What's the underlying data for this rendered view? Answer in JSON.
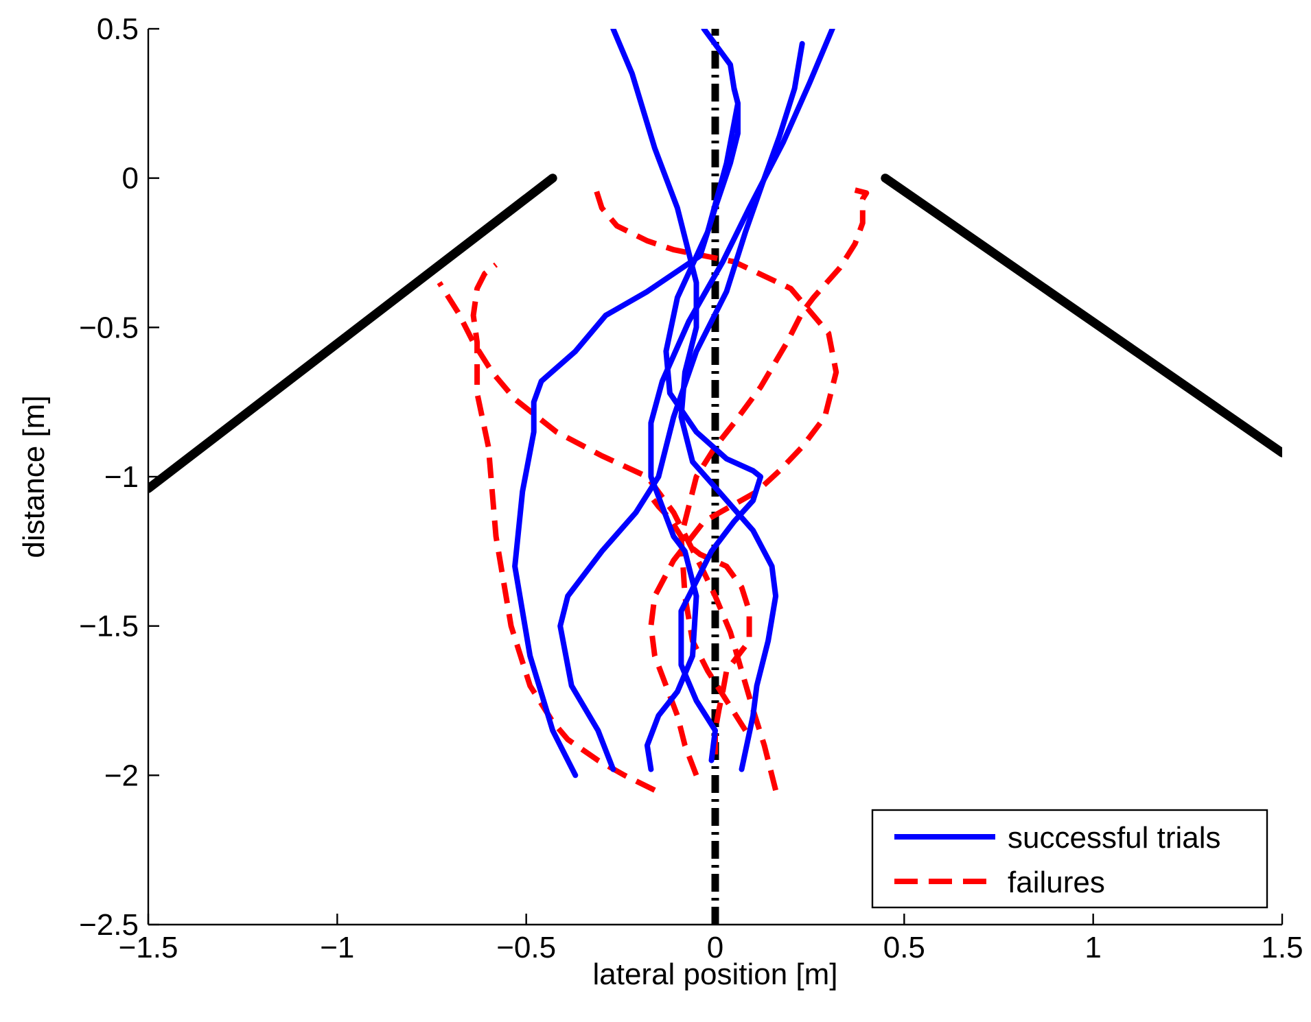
{
  "chart_data": {
    "type": "line",
    "title": "",
    "xlabel": "lateral position [m]",
    "ylabel": "distance [m]",
    "xlim": [
      -1.5,
      1.5
    ],
    "ylim": [
      -2.5,
      0.5
    ],
    "xticks": [
      -1.5,
      -1,
      -0.5,
      0,
      0.5,
      1,
      1.5
    ],
    "xtick_labels": [
      "−1.5",
      "−1",
      "−0.5",
      "0",
      "0.5",
      "1",
      "1.5"
    ],
    "yticks": [
      0.5,
      0,
      -0.5,
      -1,
      -1.5,
      -2,
      -2.5
    ],
    "ytick_labels": [
      "0.5",
      "0",
      "−0.5",
      "−1",
      "−1.5",
      "−2",
      "−2.5"
    ],
    "grid": false,
    "legend": {
      "position": "bottom-right",
      "entries": [
        "successful trials",
        "failures"
      ]
    },
    "colors": {
      "success": "#0000ff",
      "failure": "#ff0000",
      "walls": "#000000",
      "centerline": "#000000"
    },
    "walls": [
      {
        "name": "left-wall",
        "x": [
          -1.5,
          -0.43
        ],
        "y": [
          -1.04,
          0.0
        ]
      },
      {
        "name": "right-wall",
        "x": [
          0.45,
          1.5
        ],
        "y": [
          0.0,
          -0.92
        ]
      }
    ],
    "centerline": {
      "x": [
        0.0,
        0.0
      ],
      "y": [
        -2.5,
        0.5
      ]
    },
    "series": [
      {
        "name": "successful trials",
        "style": "solid",
        "color": "#0000ff",
        "trials": [
          {
            "x": [
              -0.37,
              -0.43,
              -0.49,
              -0.53,
              -0.51,
              -0.48,
              -0.48,
              -0.46,
              -0.37,
              -0.29,
              -0.18,
              -0.04,
              0.0,
              0.04,
              0.06,
              0.06,
              0.05
            ],
            "y": [
              -2.0,
              -1.85,
              -1.6,
              -1.3,
              -1.05,
              -0.85,
              -0.75,
              -0.68,
              -0.58,
              -0.46,
              -0.38,
              -0.26,
              -0.1,
              0.05,
              0.15,
              0.25,
              0.3
            ]
          },
          {
            "x": [
              -0.27,
              -0.31,
              -0.38,
              -0.41,
              -0.39,
              -0.3,
              -0.21,
              -0.15,
              -0.11,
              -0.05,
              0.03,
              0.08,
              0.13,
              0.17,
              0.21,
              0.23
            ],
            "y": [
              -1.98,
              -1.85,
              -1.7,
              -1.5,
              -1.4,
              -1.25,
              -1.12,
              -1.0,
              -0.8,
              -0.58,
              -0.38,
              -0.18,
              0.0,
              0.14,
              0.3,
              0.45
            ]
          },
          {
            "x": [
              -0.17,
              -0.18,
              -0.15,
              -0.1,
              -0.06,
              -0.05,
              -0.08,
              -0.11,
              -0.14,
              -0.17,
              -0.17,
              -0.14,
              -0.07,
              0.02,
              0.09,
              0.18,
              0.25,
              0.31
            ],
            "y": [
              -1.98,
              -1.9,
              -1.8,
              -1.72,
              -1.6,
              -1.4,
              -1.25,
              -1.2,
              -1.1,
              -1.0,
              -0.82,
              -0.68,
              -0.48,
              -0.28,
              -0.1,
              0.12,
              0.32,
              0.5
            ]
          },
          {
            "x": [
              0.07,
              0.1,
              0.11,
              0.14,
              0.16,
              0.15,
              0.1,
              0.01,
              -0.06,
              -0.09,
              -0.08,
              -0.05,
              -0.05,
              -0.1,
              -0.16,
              -0.22,
              -0.27
            ],
            "y": [
              -1.98,
              -1.8,
              -1.7,
              -1.55,
              -1.4,
              -1.3,
              -1.18,
              -1.05,
              -0.95,
              -0.8,
              -0.65,
              -0.5,
              -0.35,
              -0.1,
              0.1,
              0.35,
              0.5
            ]
          },
          {
            "x": [
              -0.01,
              0.0,
              -0.05,
              -0.09,
              -0.09,
              -0.05,
              -0.01,
              0.05,
              0.1,
              0.12,
              0.1,
              0.03,
              -0.05,
              -0.12,
              -0.13,
              -0.1,
              -0.02,
              0.03,
              0.06,
              0.05,
              0.04,
              -0.03
            ],
            "y": [
              -1.95,
              -1.85,
              -1.75,
              -1.63,
              -1.45,
              -1.35,
              -1.25,
              -1.15,
              -1.08,
              -1.0,
              -0.98,
              -0.94,
              -0.85,
              -0.72,
              -0.58,
              -0.4,
              -0.18,
              0.05,
              0.25,
              0.3,
              0.38,
              0.5
            ]
          }
        ]
      },
      {
        "name": "failures",
        "style": "dashed",
        "color": "#ff0000",
        "trials": [
          {
            "x": [
              -0.16,
              -0.24,
              -0.31,
              -0.39,
              -0.43,
              -0.49,
              -0.54,
              -0.58,
              -0.6,
              -0.63,
              -0.63,
              -0.64,
              -0.63,
              -0.61,
              -0.58
            ],
            "y": [
              -2.05,
              -2.0,
              -1.95,
              -1.88,
              -1.82,
              -1.7,
              -1.5,
              -1.2,
              -0.9,
              -0.72,
              -0.55,
              -0.46,
              -0.37,
              -0.32,
              -0.29
            ]
          },
          {
            "x": [
              0.16,
              0.13,
              0.1,
              0.07,
              0.04,
              0.0,
              -0.03,
              -0.07,
              -0.11,
              -0.18,
              -0.3,
              -0.42,
              -0.53,
              -0.59,
              -0.64,
              -0.68,
              -0.73
            ],
            "y": [
              -2.05,
              -1.9,
              -1.78,
              -1.65,
              -1.52,
              -1.4,
              -1.32,
              -1.22,
              -1.12,
              -1.0,
              -0.93,
              -0.85,
              -0.74,
              -0.65,
              -0.55,
              -0.45,
              -0.35
            ]
          },
          {
            "x": [
              -0.05,
              -0.08,
              -0.1,
              -0.13,
              -0.16,
              -0.17,
              -0.16,
              -0.11,
              -0.03,
              0.04,
              0.11,
              0.17,
              0.23,
              0.29,
              0.32,
              0.3,
              0.2,
              0.05,
              -0.11,
              -0.18,
              -0.26,
              -0.3,
              -0.32
            ],
            "y": [
              -2.0,
              -1.9,
              -1.8,
              -1.7,
              -1.6,
              -1.5,
              -1.4,
              -1.28,
              -1.15,
              -1.1,
              -1.05,
              -0.98,
              -0.9,
              -0.8,
              -0.65,
              -0.52,
              -0.37,
              -0.28,
              -0.24,
              -0.21,
              -0.16,
              -0.1,
              -0.02
            ]
          },
          {
            "x": [
              0.0,
              0.0,
              0.01,
              0.02,
              0.03,
              0.06,
              0.09,
              0.09,
              0.07,
              0.03,
              -0.04,
              -0.08,
              -0.1,
              -0.12,
              -0.15,
              -0.18
            ],
            "y": [
              -1.93,
              -1.85,
              -1.78,
              -1.72,
              -1.65,
              -1.6,
              -1.55,
              -1.45,
              -1.37,
              -1.3,
              -1.26,
              -1.22,
              -1.18,
              -1.14,
              -1.1,
              -1.05
            ]
          },
          {
            "x": [
              0.08,
              0.03,
              -0.02,
              -0.06,
              -0.08,
              -0.09,
              -0.05,
              0.0,
              0.05,
              0.12,
              0.19,
              0.23,
              0.26,
              0.33,
              0.37,
              0.39,
              0.39,
              0.4,
              0.37
            ],
            "y": [
              -1.85,
              -1.75,
              -1.65,
              -1.55,
              -1.4,
              -1.2,
              -1.0,
              -0.9,
              -0.82,
              -0.7,
              -0.55,
              -0.45,
              -0.4,
              -0.3,
              -0.22,
              -0.15,
              -0.07,
              -0.05,
              -0.04
            ]
          }
        ]
      }
    ]
  }
}
